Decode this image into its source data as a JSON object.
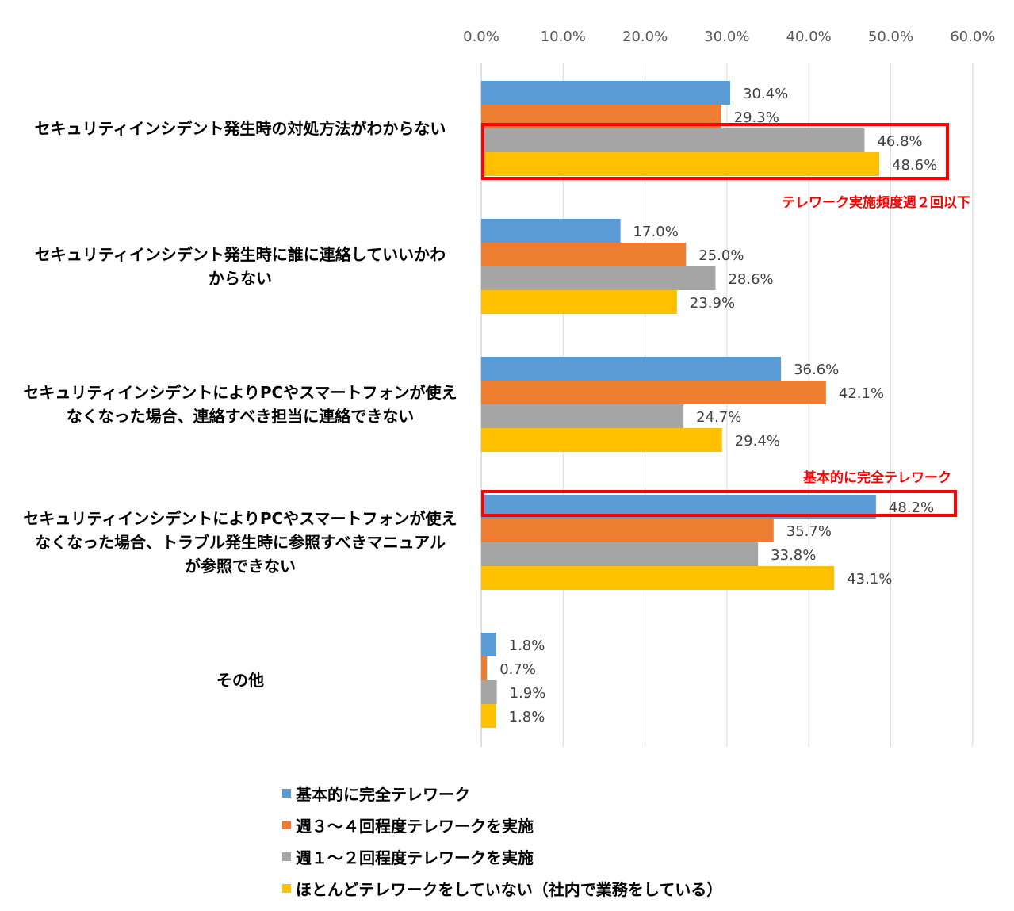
{
  "chart_data": {
    "type": "bar",
    "orientation": "horizontal",
    "categories": [
      [
        "セキュリティインシデント発生時の対処方法がわからない"
      ],
      [
        "セキュリティインシデント発生時に誰に連絡していいかわ",
        "からない"
      ],
      [
        "セキュリティインシデントによりPCやスマートフォンが使え",
        "なくなった場合、連絡すべき担当に連絡できない"
      ],
      [
        "セキュリティインシデントによりPCやスマートフォンが使え",
        "なくなった場合、トラブル発生時に参照すべきマニュアル",
        "が参照できない"
      ],
      [
        "その他"
      ]
    ],
    "series": [
      {
        "name": "基本的に完全テレワーク",
        "color": "#5b9bd5",
        "values": [
          30.4,
          17.0,
          36.6,
          48.2,
          1.8
        ],
        "labels": [
          "30.4%",
          "17.0%",
          "36.6%",
          "48.2%",
          "1.8%"
        ]
      },
      {
        "name": "週３～４回程度テレワークを実施",
        "color": "#ed7d31",
        "values": [
          29.3,
          25.0,
          42.1,
          35.7,
          0.7
        ],
        "labels": [
          "29.3%",
          "25.0%",
          "42.1%",
          "35.7%",
          "0.7%"
        ]
      },
      {
        "name": "週１～２回程度テレワークを実施",
        "color": "#a5a5a5",
        "values": [
          46.8,
          28.6,
          24.7,
          33.8,
          1.9
        ],
        "labels": [
          "46.8%",
          "28.6%",
          "24.7%",
          "33.8%",
          "1.9%"
        ]
      },
      {
        "name": "ほとんどテレワークをしていない（社内で業務をしている）",
        "color": "#ffc000",
        "values": [
          48.6,
          23.9,
          29.4,
          43.1,
          1.8
        ],
        "labels": [
          "48.6%",
          "23.9%",
          "29.4%",
          "43.1%",
          "1.8%"
        ]
      }
    ],
    "xlim": [
      0,
      60
    ],
    "ticks": [
      0,
      10,
      20,
      30,
      40,
      50,
      60
    ],
    "tick_labels": [
      "0.0%",
      "10.0%",
      "20.0%",
      "30.0%",
      "40.0%",
      "50.0%",
      "60.0%"
    ],
    "axis_position": "top",
    "grid": true,
    "legend_position": "bottom",
    "annotations": [
      {
        "text": "テレワーク実施頻度週２回以下",
        "category_index": 0,
        "series_indices": [
          2,
          3
        ],
        "color": "#ff0000"
      },
      {
        "text": "基本的に完全テレワーク",
        "category_index": 3,
        "series_indices": [
          0
        ],
        "color": "#ff0000"
      }
    ]
  }
}
